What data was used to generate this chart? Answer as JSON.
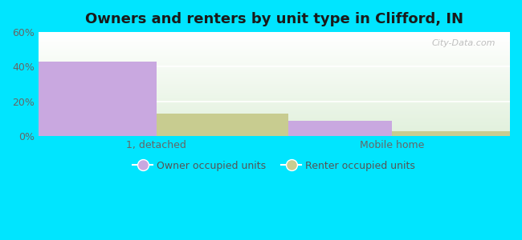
{
  "title": "Owners and renters by unit type in Clifford, IN",
  "categories": [
    "1, detached",
    "Mobile home"
  ],
  "owner_values": [
    43,
    9
  ],
  "renter_values": [
    13,
    3
  ],
  "owner_color": "#c9a8e0",
  "renter_color": "#c8cc90",
  "ylim": [
    0,
    60
  ],
  "yticks": [
    0,
    20,
    40,
    60
  ],
  "yticklabels": [
    "0%",
    "20%",
    "40%",
    "60%"
  ],
  "bar_width": 0.28,
  "outer_bg": "#00e5ff",
  "title_fontsize": 13,
  "legend_fontsize": 9,
  "tick_fontsize": 9,
  "watermark": "City-Data.com",
  "group_positions": [
    0.25,
    0.75
  ],
  "xlim": [
    0,
    1
  ]
}
